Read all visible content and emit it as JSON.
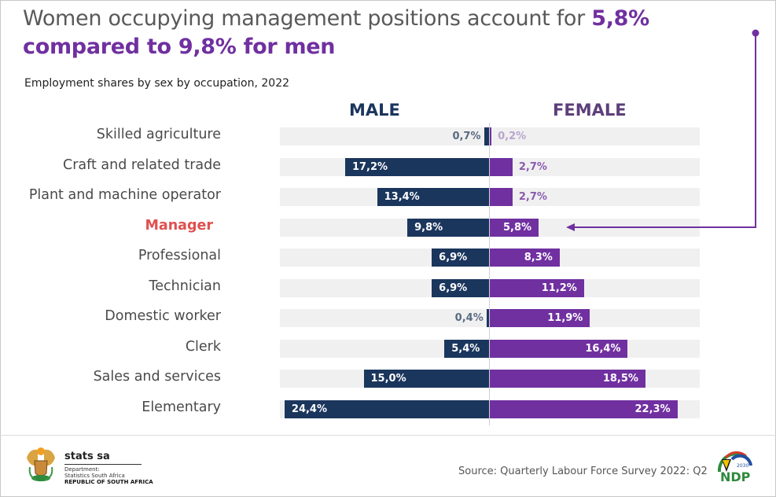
{
  "header": {
    "title_prefix": "Women occupying management positions account for ",
    "title_highlight": "5,8% compared to 9,8% for men",
    "subtitle": "Employment shares by sex by occupation, 2022"
  },
  "chart_data": {
    "type": "bar",
    "orientation": "horizontal-diverging",
    "title": "Employment shares by sex by occupation, 2022",
    "xlabel": "",
    "ylabel": "",
    "unit": "%",
    "categories": [
      "Skilled agriculture",
      "Craft and related trade",
      "Plant and machine operator",
      "Manager",
      "Professional",
      "Technician",
      "Domestic worker",
      "Clerk",
      "Sales and services",
      "Elementary"
    ],
    "highlight_category": "Manager",
    "series": [
      {
        "name": "MALE",
        "color": "#1b365d",
        "values": [
          0.7,
          17.2,
          13.4,
          9.8,
          6.9,
          6.9,
          0.4,
          5.4,
          15.0,
          24.4
        ],
        "labels": [
          "0,7%",
          "17,2%",
          "13,4%",
          "9,8%",
          "6,9%",
          "6,9%",
          "0,4%",
          "5,4%",
          "15,0%",
          "24,4%"
        ]
      },
      {
        "name": "FEMALE",
        "color": "#7030a0",
        "values": [
          0.2,
          2.7,
          2.7,
          5.8,
          8.3,
          11.2,
          11.9,
          16.4,
          18.5,
          22.3
        ],
        "labels": [
          "0,2%",
          "2,7%",
          "2,7%",
          "5,8%",
          "8,3%",
          "11,2%",
          "11,9%",
          "16,4%",
          "18,5%",
          "22,3%"
        ]
      }
    ],
    "xlim": [
      -25,
      25
    ],
    "grid": false,
    "annotation": "Arrow from headline points to Manager female bar (5,8%)"
  },
  "footer": {
    "source": "Source: Quarterly Labour Force Survey 2022: Q2",
    "logo_name": "stats sa",
    "logo_dept": "Department:",
    "logo_dept2": "Statistics South Africa",
    "logo_country": "REPUBLIC OF SOUTH AFRICA",
    "ndp_text": "NDP",
    "ndp_year": "2030"
  },
  "colors": {
    "male": "#1b365d",
    "female": "#7030a0",
    "highlight": "#e05050",
    "track": "#f0f0f0"
  }
}
